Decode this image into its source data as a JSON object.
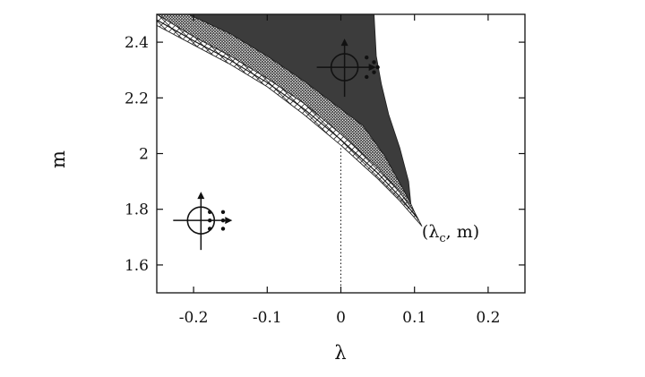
{
  "chart_data": {
    "type": "area",
    "xlabel": "λ",
    "ylabel": "m",
    "xlim": [
      -0.25,
      0.25
    ],
    "ylim": [
      1.5,
      2.5
    ],
    "xticks": [
      {
        "value": -0.2,
        "label": "-0.2"
      },
      {
        "value": -0.1,
        "label": "-0.1"
      },
      {
        "value": 0,
        "label": "0"
      },
      {
        "value": 0.1,
        "label": "0.1"
      },
      {
        "value": 0.2,
        "label": "0.2"
      }
    ],
    "yticks": [
      {
        "value": 1.6,
        "label": "1.6"
      },
      {
        "value": 1.8,
        "label": "1.8"
      },
      {
        "value": 2,
        "label": "2"
      },
      {
        "value": 2.2,
        "label": "2.2"
      },
      {
        "value": 2.4,
        "label": "2.4"
      }
    ],
    "grid": false,
    "regions": [
      {
        "id": "unstable-region",
        "fill": "#3c3c3c",
        "points": [
          [
            -0.207,
            2.5
          ],
          [
            -0.15,
            2.43
          ],
          [
            -0.1,
            2.35
          ],
          [
            -0.05,
            2.26
          ],
          [
            0,
            2.16
          ],
          [
            0.03,
            2.1
          ],
          [
            0.06,
            1.99
          ],
          [
            0.085,
            1.87
          ],
          [
            0.095,
            1.82
          ],
          [
            0.092,
            1.9
          ],
          [
            0.08,
            2.02
          ],
          [
            0.065,
            2.14
          ],
          [
            0.055,
            2.25
          ],
          [
            0.048,
            2.35
          ],
          [
            0.045,
            2.5
          ]
        ]
      },
      {
        "id": "fine-hatch-band",
        "pattern": "fine-crosshatch",
        "points": [
          [
            -0.25,
            2.5
          ],
          [
            -0.2,
            2.42
          ],
          [
            -0.15,
            2.35
          ],
          [
            -0.1,
            2.27
          ],
          [
            -0.05,
            2.18
          ],
          [
            0,
            2.07
          ],
          [
            0.05,
            1.95
          ],
          [
            0.08,
            1.86
          ],
          [
            0.1,
            1.79
          ],
          [
            0.095,
            1.82
          ],
          [
            0.085,
            1.87
          ],
          [
            0.06,
            1.99
          ],
          [
            0.03,
            2.1
          ],
          [
            0,
            2.16
          ],
          [
            -0.05,
            2.26
          ],
          [
            -0.1,
            2.35
          ],
          [
            -0.15,
            2.43
          ],
          [
            -0.207,
            2.5
          ]
        ]
      },
      {
        "id": "coarse-hatch-band",
        "pattern": "coarse-crosshatch",
        "points": [
          [
            -0.25,
            2.46
          ],
          [
            -0.2,
            2.39
          ],
          [
            -0.15,
            2.32
          ],
          [
            -0.1,
            2.24
          ],
          [
            -0.05,
            2.14
          ],
          [
            0,
            2.03
          ],
          [
            0.05,
            1.91
          ],
          [
            0.08,
            1.83
          ],
          [
            0.11,
            1.74
          ],
          [
            0.1,
            1.79
          ],
          [
            0.08,
            1.86
          ],
          [
            0.05,
            1.95
          ],
          [
            0,
            2.07
          ],
          [
            -0.05,
            2.18
          ],
          [
            -0.1,
            2.27
          ],
          [
            -0.15,
            2.35
          ],
          [
            -0.2,
            2.42
          ],
          [
            -0.25,
            2.5
          ]
        ]
      }
    ],
    "lines": [
      {
        "id": "inner-boundary",
        "points": [
          [
            -0.25,
            2.48
          ],
          [
            -0.2,
            2.405
          ],
          [
            -0.15,
            2.335
          ],
          [
            -0.1,
            2.255
          ],
          [
            -0.05,
            2.16
          ],
          [
            0,
            2.05
          ],
          [
            0.05,
            1.93
          ],
          [
            0.08,
            1.845
          ],
          [
            0.105,
            1.765
          ]
        ]
      }
    ],
    "guides": [
      {
        "id": "lambda-zero-guide",
        "style": "dotted",
        "x": 0,
        "y_from": 1.5,
        "y_to": 2.02
      }
    ],
    "annotations": [
      {
        "id": "critical-point-label",
        "x": 0.11,
        "y": 1.7
      }
    ],
    "insets": [
      {
        "id": "unstable-eigenvalue-inset",
        "x": 0.005,
        "y": 2.31,
        "dots": [
          [
            0.03,
            0.035
          ],
          [
            0.04,
            0.018
          ],
          [
            0.045,
            0
          ],
          [
            0.04,
            -0.018
          ],
          [
            0.03,
            -0.035
          ]
        ]
      },
      {
        "id": "stable-eigenvalue-inset",
        "x": -0.19,
        "y": 1.76,
        "dots": [
          [
            0.012,
            0.03
          ],
          [
            0.012,
            0
          ],
          [
            0.012,
            -0.03
          ],
          [
            0.03,
            0.03
          ],
          [
            0.03,
            0
          ],
          [
            0.03,
            -0.03
          ]
        ]
      }
    ],
    "annotation_text": {
      "lambda_symbol": "λ",
      "subscript": "c",
      "rest": ", m)"
    }
  }
}
